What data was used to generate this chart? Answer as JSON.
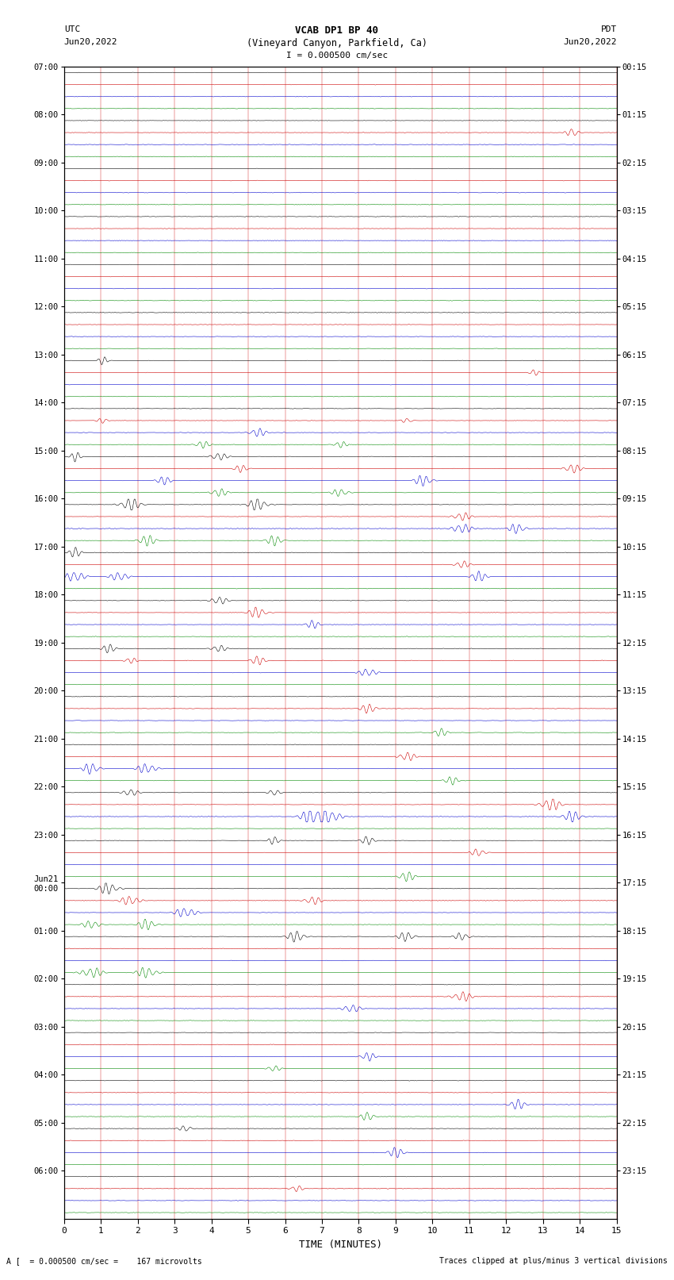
{
  "title_line1": "VCAB DP1 BP 40",
  "title_line2": "(Vineyard Canyon, Parkfield, Ca)",
  "scale_text": "I = 0.000500 cm/sec",
  "left_label_top1": "UTC",
  "left_label_top2": "Jun20,2022",
  "right_label_top1": "PDT",
  "right_label_top2": "Jun20,2022",
  "xlabel": "TIME (MINUTES)",
  "bottom_left": "A [  = 0.000500 cm/sec =    167 microvolts",
  "bottom_right": "Traces clipped at plus/minus 3 vertical divisions",
  "xmin": 0,
  "xmax": 15,
  "xticks": [
    0,
    1,
    2,
    3,
    4,
    5,
    6,
    7,
    8,
    9,
    10,
    11,
    12,
    13,
    14,
    15
  ],
  "trace_colors_cycle": [
    "#000000",
    "#cc0000",
    "#0000cc",
    "#008800"
  ],
  "background_color": "white",
  "utc_labels": [
    "07:00",
    "08:00",
    "09:00",
    "10:00",
    "11:00",
    "12:00",
    "13:00",
    "14:00",
    "15:00",
    "16:00",
    "17:00",
    "18:00",
    "19:00",
    "20:00",
    "21:00",
    "22:00",
    "23:00",
    "Jun21\n00:00",
    "01:00",
    "02:00",
    "03:00",
    "04:00",
    "05:00",
    "06:00"
  ],
  "pdt_labels": [
    "00:15",
    "01:15",
    "02:15",
    "03:15",
    "04:15",
    "05:15",
    "06:15",
    "07:15",
    "08:15",
    "09:15",
    "10:15",
    "11:15",
    "12:15",
    "13:15",
    "14:15",
    "15:15",
    "16:15",
    "17:15",
    "18:15",
    "19:15",
    "20:15",
    "21:15",
    "22:15",
    "23:15"
  ]
}
